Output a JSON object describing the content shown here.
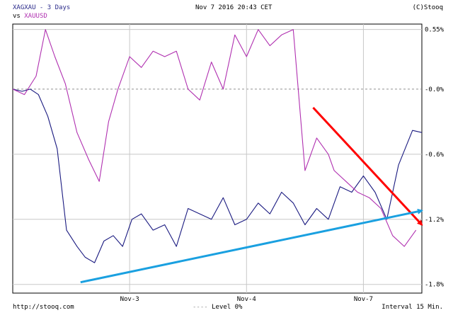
{
  "header": {
    "series1_label": "XAGXAU - 3 Days",
    "vs_prefix": "vs",
    "series2_label": "XAUUSD",
    "datetime": "Nov 7 2016 20:43 CET",
    "copyright": "(C)Stooq"
  },
  "footer": {
    "source": "http://stooq.com",
    "level": "Level 0%",
    "interval": "Interval 15 Min."
  },
  "colors": {
    "series1": "#1a1a80",
    "series2": "#b030b0",
    "arrow_down": "#ff0000",
    "arrow_up": "#1aa0e0",
    "grid": "#c8c8c8",
    "level_line": "#909090"
  },
  "chart_data": {
    "type": "line",
    "y_tick_labels": [
      "0.55%",
      "-0.0%",
      "-0.6%",
      "-1.2%",
      "-1.8%"
    ],
    "y_ticks": [
      0.55,
      0.0,
      -0.6,
      -1.2,
      -1.8
    ],
    "ylim": [
      -1.88,
      0.6
    ],
    "x_tick_labels": [
      "Nov-3",
      "Nov-4",
      "Nov-7"
    ],
    "x_ticks": [
      1,
      2,
      3
    ],
    "xlim": [
      0,
      3.5
    ],
    "level_line": 0.0,
    "grid": true,
    "series": [
      {
        "name": "XAGXAU",
        "x": [
          0.0,
          0.08,
          0.15,
          0.22,
          0.3,
          0.38,
          0.46,
          0.55,
          0.62,
          0.7,
          0.78,
          0.86,
          0.94,
          1.02,
          1.1,
          1.2,
          1.3,
          1.4,
          1.5,
          1.6,
          1.7,
          1.8,
          1.9,
          2.0,
          2.1,
          2.2,
          2.3,
          2.4,
          2.5,
          2.6,
          2.7,
          2.8,
          2.9,
          3.0,
          3.1,
          3.2,
          3.3,
          3.42,
          3.5
        ],
        "y": [
          0.0,
          -0.02,
          0.0,
          -0.05,
          -0.25,
          -0.55,
          -1.3,
          -1.45,
          -1.55,
          -1.6,
          -1.4,
          -1.35,
          -1.45,
          -1.2,
          -1.15,
          -1.3,
          -1.25,
          -1.45,
          -1.1,
          -1.15,
          -1.2,
          -1.0,
          -1.25,
          -1.2,
          -1.05,
          -1.15,
          -0.95,
          -1.05,
          -1.25,
          -1.1,
          -1.2,
          -0.9,
          -0.95,
          -0.8,
          -0.95,
          -1.2,
          -0.7,
          -0.38,
          -0.4
        ]
      },
      {
        "name": "XAUUSD",
        "x": [
          0.0,
          0.1,
          0.2,
          0.28,
          0.36,
          0.45,
          0.55,
          0.65,
          0.74,
          0.82,
          0.9,
          1.0,
          1.1,
          1.2,
          1.3,
          1.4,
          1.5,
          1.6,
          1.7,
          1.8,
          1.9,
          2.0,
          2.1,
          2.2,
          2.3,
          2.4,
          2.5,
          2.6,
          2.7,
          2.75,
          2.85,
          2.95,
          3.05,
          3.15,
          3.25,
          3.35,
          3.45
        ],
        "y": [
          0.0,
          -0.05,
          0.12,
          0.55,
          0.3,
          0.05,
          -0.4,
          -0.65,
          -0.85,
          -0.3,
          0.0,
          0.3,
          0.2,
          0.35,
          0.3,
          0.35,
          0.0,
          -0.1,
          0.25,
          0.0,
          0.5,
          0.3,
          0.55,
          0.4,
          0.5,
          0.55,
          -0.75,
          -0.45,
          -0.6,
          -0.75,
          -0.85,
          -0.95,
          -1.0,
          -1.1,
          -1.35,
          -1.45,
          -1.3
        ]
      }
    ],
    "annotations": [
      {
        "type": "arrow",
        "color": "red",
        "from": [
          2.57,
          -0.17
        ],
        "to": [
          3.5,
          -1.25
        ]
      },
      {
        "type": "arrow",
        "color": "blue",
        "from": [
          0.58,
          -1.78
        ],
        "to": [
          3.5,
          -1.12
        ]
      }
    ]
  }
}
